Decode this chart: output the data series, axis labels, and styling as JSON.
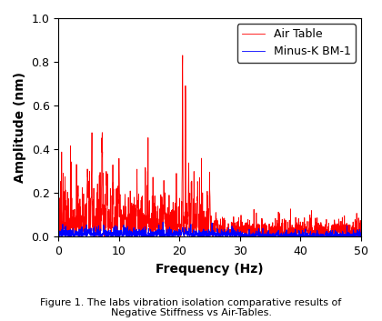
{
  "xlabel": "Frequency (Hz)",
  "ylabel": "Amplitude (nm)",
  "xlim": [
    0,
    50
  ],
  "ylim": [
    0,
    1.0
  ],
  "yticks": [
    0,
    0.2,
    0.4,
    0.6,
    0.8,
    1.0
  ],
  "xticks": [
    0,
    10,
    20,
    30,
    40,
    50
  ],
  "legend_labels": [
    "Air Table",
    "Minus-K BM-1"
  ],
  "air_color": "#FF0000",
  "mink_color": "#0000FF",
  "caption": "Figure 1. The labs vibration isolation comparative results of\nNegative Stiffness vs Air-Tables.",
  "background_color": "#ffffff",
  "line_width": 0.6,
  "seed": 7
}
